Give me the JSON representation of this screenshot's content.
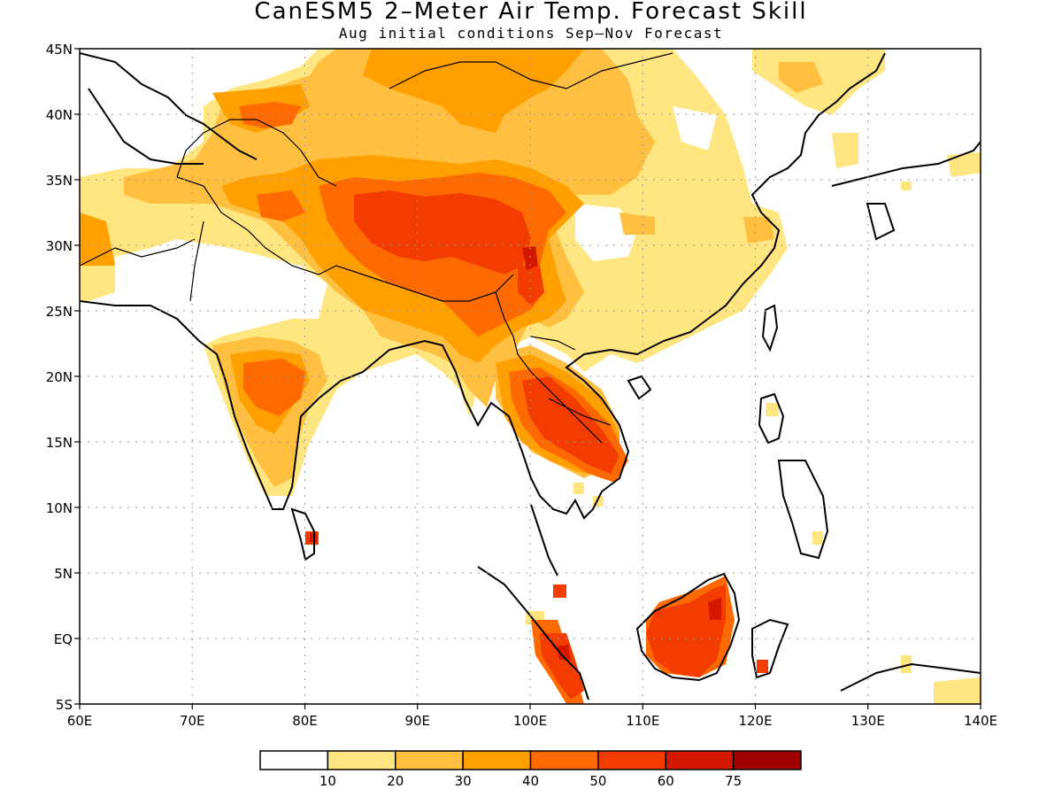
{
  "title": "CanESM5 2–Meter Air Temp. Forecast Skill",
  "subtitle": "Aug initial conditions  Sep–Nov Forecast",
  "map": {
    "lon_range": [
      60,
      140
    ],
    "lat_range": [
      -5,
      45
    ],
    "lon_ticks": [
      {
        "value": 60,
        "label": "60E"
      },
      {
        "value": 70,
        "label": "70E"
      },
      {
        "value": 80,
        "label": "80E"
      },
      {
        "value": 90,
        "label": "90E"
      },
      {
        "value": 100,
        "label": "100E"
      },
      {
        "value": 110,
        "label": "110E"
      },
      {
        "value": 120,
        "label": "120E"
      },
      {
        "value": 130,
        "label": "130E"
      },
      {
        "value": 140,
        "label": "140E"
      }
    ],
    "lat_ticks": [
      {
        "value": 45,
        "label": "45N"
      },
      {
        "value": 40,
        "label": "40N"
      },
      {
        "value": 35,
        "label": "35N"
      },
      {
        "value": 30,
        "label": "30N"
      },
      {
        "value": 25,
        "label": "25N"
      },
      {
        "value": 20,
        "label": "20N"
      },
      {
        "value": 15,
        "label": "15N"
      },
      {
        "value": 10,
        "label": "10N"
      },
      {
        "value": 5,
        "label": "5N"
      },
      {
        "value": 0,
        "label": "EQ"
      },
      {
        "value": -5,
        "label": "5S"
      }
    ],
    "gridlines": "dotted"
  },
  "legend": {
    "colors": [
      "#ffffff",
      "#ffe680",
      "#ffbf40",
      "#ffa000",
      "#ff6a00",
      "#f23c00",
      "#d41800",
      "#a00000"
    ],
    "labels": [
      "10",
      "20",
      "30",
      "40",
      "50",
      "60",
      "75"
    ]
  }
}
